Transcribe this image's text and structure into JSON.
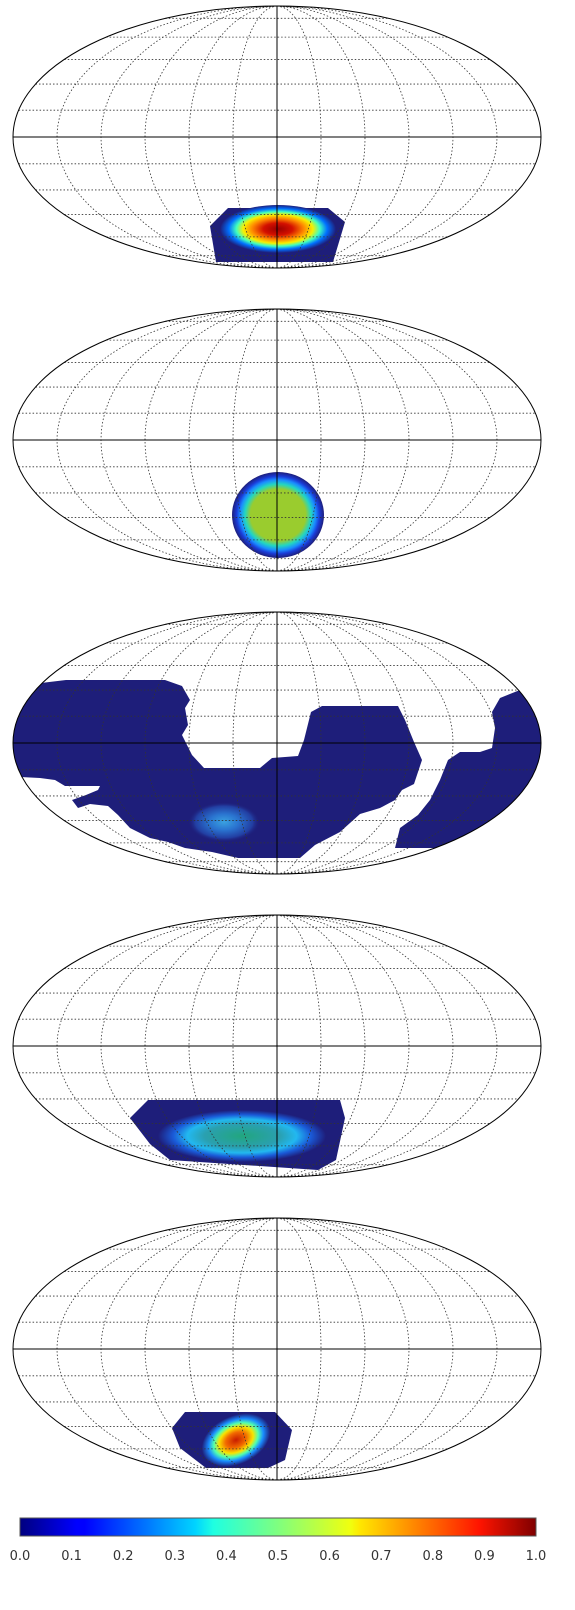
{
  "figure": {
    "panel_count": 5,
    "projection": "mollweide",
    "graticule": {
      "meridians": "dotted",
      "parallels": "dotted",
      "center_lines": "solid",
      "color": "#333333"
    },
    "colormap": "jet",
    "colors": {
      "outline": "#000000",
      "background": "#ffffff",
      "fill_low": "#1e1e7a"
    }
  },
  "colorbar": {
    "ticks": [
      "0.0",
      "0.1",
      "0.2",
      "0.3",
      "0.4",
      "0.5",
      "0.6",
      "0.7",
      "0.8",
      "0.9",
      "1.0"
    ],
    "range": [
      0,
      1
    ]
  },
  "panels": [
    {
      "id": "panel-1",
      "description_peak": 1.0
    },
    {
      "id": "panel-2",
      "description_peak": 0.55
    },
    {
      "id": "panel-3",
      "description_peak": 0.3
    },
    {
      "id": "panel-4",
      "description_peak": 0.4
    },
    {
      "id": "panel-5",
      "description_peak": 0.85
    }
  ]
}
